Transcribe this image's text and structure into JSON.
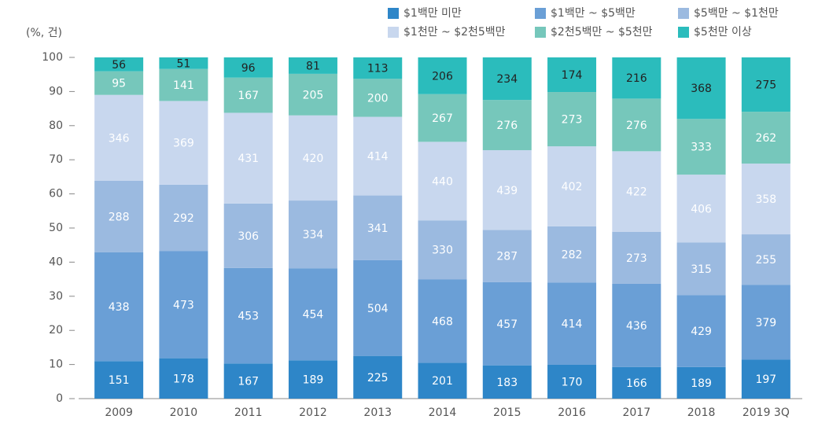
{
  "chart_data": {
    "type": "bar",
    "stacked": "percent",
    "y_unit_label": "(%, 건)",
    "categories": [
      "2009",
      "2010",
      "2011",
      "2012",
      "2013",
      "2014",
      "2015",
      "2016",
      "2017",
      "2018",
      "2019 3Q"
    ],
    "series": [
      {
        "name": "$1백만 미만",
        "color": "#2e86c8",
        "values": [
          151,
          178,
          167,
          189,
          225,
          201,
          183,
          170,
          166,
          189,
          197
        ]
      },
      {
        "name": "$1백만 ~ $5백만",
        "color": "#6a9fd6",
        "values": [
          438,
          473,
          453,
          454,
          504,
          468,
          457,
          414,
          436,
          429,
          379
        ]
      },
      {
        "name": "$5백만 ~ $1천만",
        "color": "#9bbae0",
        "values": [
          288,
          292,
          306,
          334,
          341,
          330,
          287,
          282,
          273,
          315,
          255
        ]
      },
      {
        "name": "$1천만 ~ $2천5백만",
        "color": "#c8d7ee",
        "values": [
          346,
          369,
          431,
          420,
          414,
          440,
          439,
          402,
          422,
          406,
          358
        ]
      },
      {
        "name": "$2천5백만 ~ $5천만",
        "color": "#76c7bb",
        "values": [
          95,
          141,
          167,
          205,
          200,
          267,
          276,
          273,
          276,
          333,
          262
        ]
      },
      {
        "name": "$5천만 이상",
        "color": "#2bbcbc",
        "values": [
          56,
          51,
          96,
          81,
          113,
          206,
          234,
          174,
          216,
          368,
          275
        ]
      }
    ],
    "ylim": [
      0,
      100
    ],
    "yticks": [
      0,
      10,
      20,
      30,
      40,
      50,
      60,
      70,
      80,
      90,
      100
    ]
  }
}
